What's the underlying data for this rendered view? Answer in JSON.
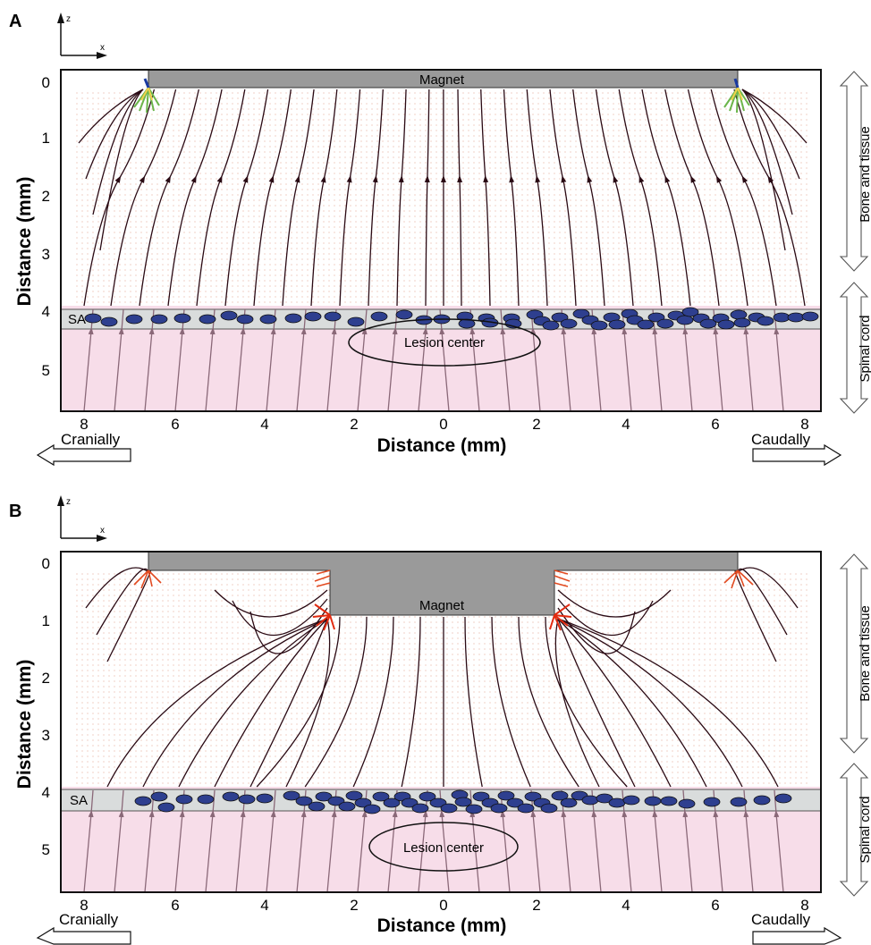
{
  "panels": [
    {
      "letter": "A",
      "axis_small_z": "z",
      "axis_small_x": "x",
      "magnet_label": "Magnet",
      "sa_label": "SA",
      "lesion_label": "Lesion center",
      "xlabel": "Distance (mm)",
      "ylabel": "Distance (mm)",
      "x_ticks": [
        "8",
        "6",
        "4",
        "2",
        "0",
        "2",
        "4",
        "6",
        "8"
      ],
      "y_ticks": [
        "0",
        "1",
        "2",
        "3",
        "4",
        "5"
      ],
      "side_top": "Bone and tissue",
      "side_bottom": "Spinal cord",
      "left_dir": "Cranially",
      "right_dir": "Caudally",
      "magnet_shape": "flat"
    },
    {
      "letter": "B",
      "axis_small_z": "z",
      "axis_small_x": "x",
      "magnet_label": "Magnet",
      "sa_label": "SA",
      "lesion_label": "Lesion center",
      "xlabel": "Distance (mm)",
      "ylabel": "Distance (mm)",
      "x_ticks": [
        "8",
        "6",
        "4",
        "2",
        "0",
        "2",
        "4",
        "6",
        "8"
      ],
      "y_ticks": [
        "0",
        "1",
        "2",
        "3",
        "4",
        "5"
      ],
      "side_top": "Bone and tissue",
      "side_bottom": "Spinal cord",
      "left_dir": "Cranially",
      "right_dir": "Caudally",
      "magnet_shape": "stepped"
    }
  ],
  "colors": {
    "magnet": "#9a9a9a",
    "sa_band": "#d9dcdc",
    "spinal_cord": "#f7dde9",
    "particle": "#2e3f8f",
    "field_line": "#2a0a14",
    "field_line_lower": "#8a6878",
    "arrow_dots": "#d46a4a"
  }
}
